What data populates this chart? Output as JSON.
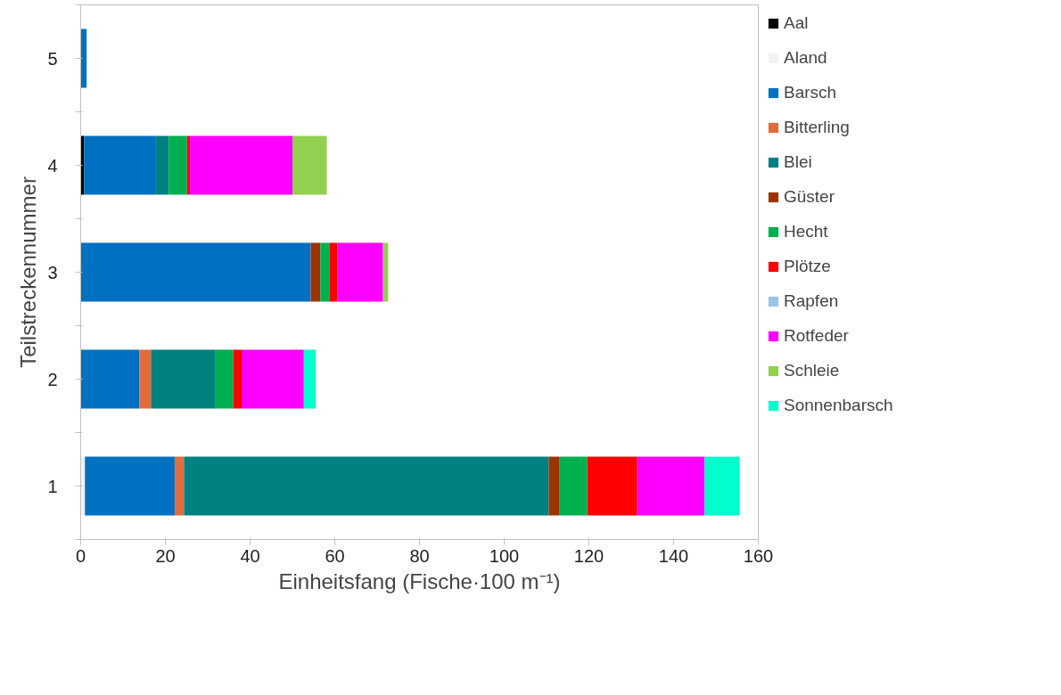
{
  "chart_data": {
    "type": "bar",
    "orientation": "horizontal",
    "stacked": true,
    "xlabel": "Einheitsfang (Fische·100 m⁻¹)",
    "ylabel": "Teilstreckennummer",
    "categories": [
      "5",
      "4",
      "3",
      "2",
      "1"
    ],
    "xlim": [
      0,
      160
    ],
    "xticks": [
      0,
      20,
      40,
      60,
      80,
      100,
      120,
      140,
      160
    ],
    "grid": false,
    "legend": "right",
    "series": [
      {
        "name": "Aal",
        "color": "#000000",
        "values": [
          null,
          0.8,
          null,
          null,
          null
        ]
      },
      {
        "name": "Aland",
        "color": "#f2f2f2",
        "values": [
          null,
          null,
          null,
          null,
          1.0
        ]
      },
      {
        "name": "Barsch",
        "color": "#0070c0",
        "values": [
          1.4,
          16.8,
          54.3,
          13.9,
          21.2
        ]
      },
      {
        "name": "Bitterling",
        "color": "#e46c3a",
        "values": [
          null,
          null,
          null,
          2.7,
          2.2
        ]
      },
      {
        "name": "Blei",
        "color": "#008080",
        "values": [
          null,
          3.2,
          null,
          15.1,
          86.1
        ]
      },
      {
        "name": "Güster",
        "color": "#993300",
        "values": [
          null,
          null,
          2.3,
          null,
          2.6
        ]
      },
      {
        "name": "Hecht",
        "color": "#00b050",
        "values": [
          null,
          4.3,
          2.1,
          4.3,
          6.5
        ]
      },
      {
        "name": "Plötze",
        "color": "#ff0000",
        "values": [
          null,
          0.7,
          1.9,
          2.0,
          11.8
        ]
      },
      {
        "name": "Rapfen",
        "color": "#9dc3e6",
        "values": [
          0,
          0,
          0,
          0,
          0
        ]
      },
      {
        "name": "Rotfeder",
        "color": "#ff00ff",
        "values": [
          null,
          24.2,
          10.8,
          14.7,
          15.9
        ]
      },
      {
        "name": "Schleie",
        "color": "#92d050",
        "values": [
          null,
          8.1,
          1.2,
          null,
          null
        ]
      },
      {
        "name": "Sonnenbarsch",
        "color": "#00ffcc",
        "values": [
          null,
          null,
          null,
          2.8,
          8.3
        ]
      }
    ]
  }
}
